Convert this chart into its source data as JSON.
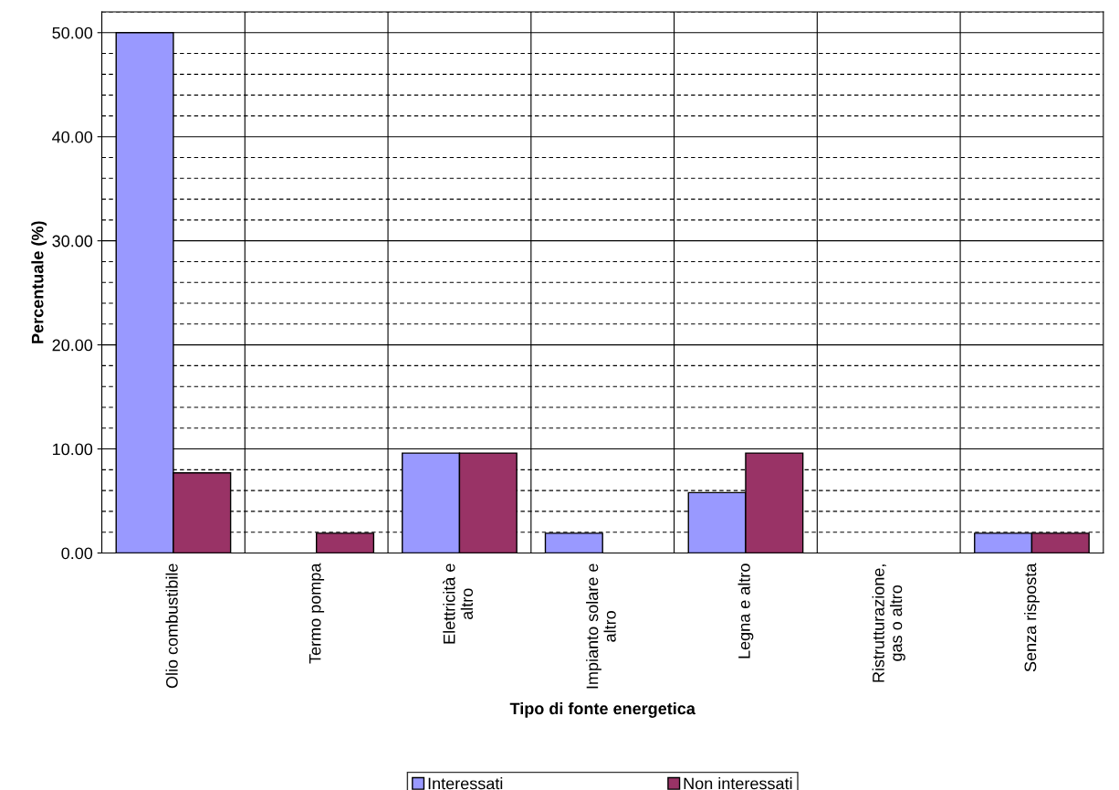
{
  "chart_data": {
    "type": "bar",
    "xlabel": "Tipo di fonte energetica",
    "ylabel": "Percentuale (%)",
    "categories": [
      "Olio combustibile",
      "Termo pompa",
      "Elettricità e altro",
      "Impianto solare e altro",
      "Legna e altro",
      "Ristrutturazione, gas o altro",
      "Senza risposta"
    ],
    "series": [
      {
        "name": "Interessati",
        "color": "#9999ff",
        "values": [
          50.0,
          0,
          9.6,
          1.9,
          5.8,
          0,
          1.9
        ]
      },
      {
        "name": "Non interessati",
        "color": "#993366",
        "values": [
          7.7,
          1.9,
          9.6,
          0,
          9.6,
          0,
          1.9
        ]
      }
    ],
    "ylim": [
      0,
      52
    ],
    "yticks": [
      {
        "value": 0,
        "label": "0.00"
      },
      {
        "value": 2,
        "label": null
      },
      {
        "value": 4,
        "label": null
      },
      {
        "value": 6,
        "label": null
      },
      {
        "value": 8,
        "label": null
      },
      {
        "value": 10,
        "label": "10.00"
      },
      {
        "value": 12,
        "label": null
      },
      {
        "value": 14,
        "label": null
      },
      {
        "value": 16,
        "label": null
      },
      {
        "value": 18,
        "label": null
      },
      {
        "value": 20,
        "label": "20.00"
      },
      {
        "value": 22,
        "label": null
      },
      {
        "value": 24,
        "label": null
      },
      {
        "value": 26,
        "label": null
      },
      {
        "value": 28,
        "label": null
      },
      {
        "value": 30,
        "label": "30.00"
      },
      {
        "value": 32,
        "label": null
      },
      {
        "value": 34,
        "label": null
      },
      {
        "value": 36,
        "label": null
      },
      {
        "value": 38,
        "label": null
      },
      {
        "value": 40,
        "label": "40.00"
      },
      {
        "value": 42,
        "label": null
      },
      {
        "value": 44,
        "label": null
      },
      {
        "value": 46,
        "label": null
      },
      {
        "value": 48,
        "label": null
      },
      {
        "value": 50,
        "label": "50.00"
      },
      {
        "value": 52,
        "label": null
      }
    ],
    "grid": true,
    "legend": "bottom"
  }
}
